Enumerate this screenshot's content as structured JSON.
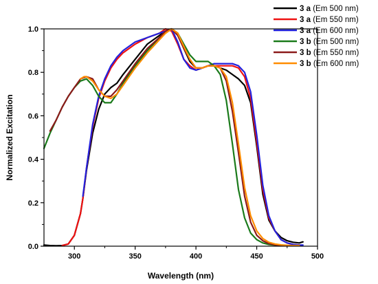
{
  "chart_data": {
    "type": "line",
    "title": "",
    "xlabel": "Wavelength (nm)",
    "ylabel": "Normalized Excitation",
    "xlim": [
      275,
      500
    ],
    "ylim": [
      0,
      1.0
    ],
    "xticks": [
      "300",
      "350",
      "400",
      "450",
      "500"
    ],
    "yticks": [
      "0.0",
      "0.2",
      "0.4",
      "0.6",
      "0.8",
      "1.0"
    ],
    "grid": false,
    "legend_position": "top-right",
    "series": [
      {
        "name": "3 a (Em 500 nm)",
        "compound": "3 a",
        "em_label": "(Em 500 nm)",
        "color": "#000000",
        "x": [
          275,
          280,
          285,
          290,
          295,
          300,
          305,
          307,
          310,
          315,
          320,
          325,
          330,
          335,
          340,
          350,
          360,
          370,
          375,
          380,
          385,
          390,
          395,
          400,
          405,
          410,
          415,
          420,
          425,
          430,
          435,
          440,
          445,
          450,
          455,
          460,
          465,
          470,
          475,
          480,
          485,
          488
        ],
        "y": [
          0.005,
          0.003,
          0.002,
          0.003,
          0.01,
          0.05,
          0.15,
          0.22,
          0.35,
          0.52,
          0.63,
          0.7,
          0.73,
          0.75,
          0.79,
          0.86,
          0.93,
          0.97,
          0.99,
          1.0,
          0.98,
          0.91,
          0.85,
          0.82,
          0.82,
          0.83,
          0.83,
          0.82,
          0.81,
          0.79,
          0.77,
          0.74,
          0.66,
          0.46,
          0.24,
          0.12,
          0.07,
          0.04,
          0.025,
          0.018,
          0.015,
          0.02
        ]
      },
      {
        "name": "3 a (Em 550 nm)",
        "compound": "3 a",
        "em_label": "(Em 550 nm)",
        "color": "#ee1111",
        "x": [
          290,
          295,
          300,
          305,
          307,
          310,
          315,
          320,
          325,
          330,
          335,
          340,
          350,
          360,
          370,
          375,
          380,
          385,
          390,
          395,
          400,
          405,
          410,
          415,
          420,
          425,
          430,
          435,
          440,
          445,
          450,
          455,
          460,
          465,
          470,
          475,
          480,
          485
        ],
        "y": [
          0.003,
          0.01,
          0.05,
          0.15,
          0.22,
          0.36,
          0.55,
          0.68,
          0.76,
          0.82,
          0.86,
          0.89,
          0.93,
          0.96,
          0.98,
          1.0,
          0.99,
          0.93,
          0.86,
          0.83,
          0.81,
          0.82,
          0.83,
          0.83,
          0.83,
          0.83,
          0.83,
          0.82,
          0.78,
          0.68,
          0.48,
          0.26,
          0.13,
          0.07,
          0.03,
          0.015,
          0.008,
          0.005
        ]
      },
      {
        "name": "3 a (Em 600 nm)",
        "compound": "3 a",
        "em_label": "(Em 600 nm)",
        "color": "#2222dd",
        "x": [
          307,
          310,
          315,
          320,
          325,
          330,
          335,
          340,
          350,
          360,
          370,
          375,
          380,
          385,
          390,
          395,
          400,
          405,
          410,
          415,
          420,
          425,
          430,
          435,
          440,
          445,
          450,
          455,
          460,
          465,
          470,
          475,
          480,
          485,
          488
        ],
        "y": [
          0.23,
          0.36,
          0.56,
          0.69,
          0.77,
          0.83,
          0.87,
          0.9,
          0.94,
          0.96,
          0.98,
          0.99,
          1.0,
          0.94,
          0.86,
          0.82,
          0.81,
          0.82,
          0.83,
          0.84,
          0.84,
          0.84,
          0.84,
          0.83,
          0.8,
          0.71,
          0.51,
          0.28,
          0.14,
          0.07,
          0.03,
          0.015,
          0.008,
          0.005,
          0.005
        ]
      },
      {
        "name": "3 b (Em 500 nm)",
        "compound": "3 b",
        "em_label": "(Em 500 nm)",
        "color": "#1a7a1a",
        "x": [
          275,
          280,
          285,
          290,
          295,
          300,
          305,
          310,
          315,
          320,
          325,
          330,
          335,
          340,
          350,
          360,
          370,
          375,
          380,
          385,
          390,
          395,
          400,
          405,
          410,
          415,
          420,
          425,
          430,
          435,
          440,
          445,
          450,
          455,
          460,
          465,
          470,
          475,
          480,
          485
        ],
        "y": [
          0.45,
          0.52,
          0.58,
          0.64,
          0.69,
          0.73,
          0.76,
          0.77,
          0.74,
          0.69,
          0.66,
          0.66,
          0.7,
          0.75,
          0.83,
          0.9,
          0.96,
          0.99,
          1.0,
          0.98,
          0.93,
          0.88,
          0.85,
          0.85,
          0.85,
          0.83,
          0.79,
          0.67,
          0.47,
          0.26,
          0.13,
          0.06,
          0.03,
          0.015,
          0.008,
          0.005,
          0.004,
          0.003,
          0.003,
          0.003
        ]
      },
      {
        "name": "3 b (Em 550 nm)",
        "compound": "3 b",
        "em_label": "(Em 550 nm)",
        "color": "#8b1a1a",
        "x": [
          280,
          285,
          290,
          295,
          300,
          305,
          310,
          315,
          320,
          325,
          330,
          335,
          340,
          350,
          360,
          370,
          375,
          380,
          385,
          390,
          395,
          400,
          405,
          410,
          415,
          420,
          425,
          430,
          435,
          440,
          445,
          450,
          455,
          460,
          465,
          470,
          475,
          480,
          485
        ],
        "y": [
          0.53,
          0.58,
          0.64,
          0.69,
          0.73,
          0.77,
          0.78,
          0.77,
          0.72,
          0.69,
          0.69,
          0.72,
          0.76,
          0.84,
          0.91,
          0.96,
          0.99,
          1.0,
          0.97,
          0.91,
          0.86,
          0.82,
          0.82,
          0.83,
          0.83,
          0.82,
          0.76,
          0.62,
          0.43,
          0.23,
          0.11,
          0.05,
          0.025,
          0.012,
          0.006,
          0.004,
          0.003,
          0.003,
          0.003
        ]
      },
      {
        "name": "3 b (Em 600 nm)",
        "compound": "3 b",
        "em_label": "(Em 600 nm)",
        "color": "#ff8c00",
        "x": [
          305,
          308,
          310,
          315,
          320,
          325,
          330,
          335,
          340,
          350,
          360,
          370,
          375,
          380,
          385,
          390,
          395,
          400,
          405,
          410,
          415,
          420,
          425,
          430,
          435,
          440,
          445,
          450,
          455,
          460,
          465,
          470,
          475,
          480,
          485
        ],
        "y": [
          0.77,
          0.78,
          0.78,
          0.76,
          0.72,
          0.69,
          0.68,
          0.7,
          0.74,
          0.82,
          0.89,
          0.95,
          0.98,
          1.0,
          0.98,
          0.92,
          0.86,
          0.82,
          0.82,
          0.83,
          0.83,
          0.82,
          0.78,
          0.66,
          0.47,
          0.27,
          0.14,
          0.07,
          0.035,
          0.018,
          0.01,
          0.006,
          0.004,
          0.003,
          0.003
        ]
      }
    ]
  }
}
